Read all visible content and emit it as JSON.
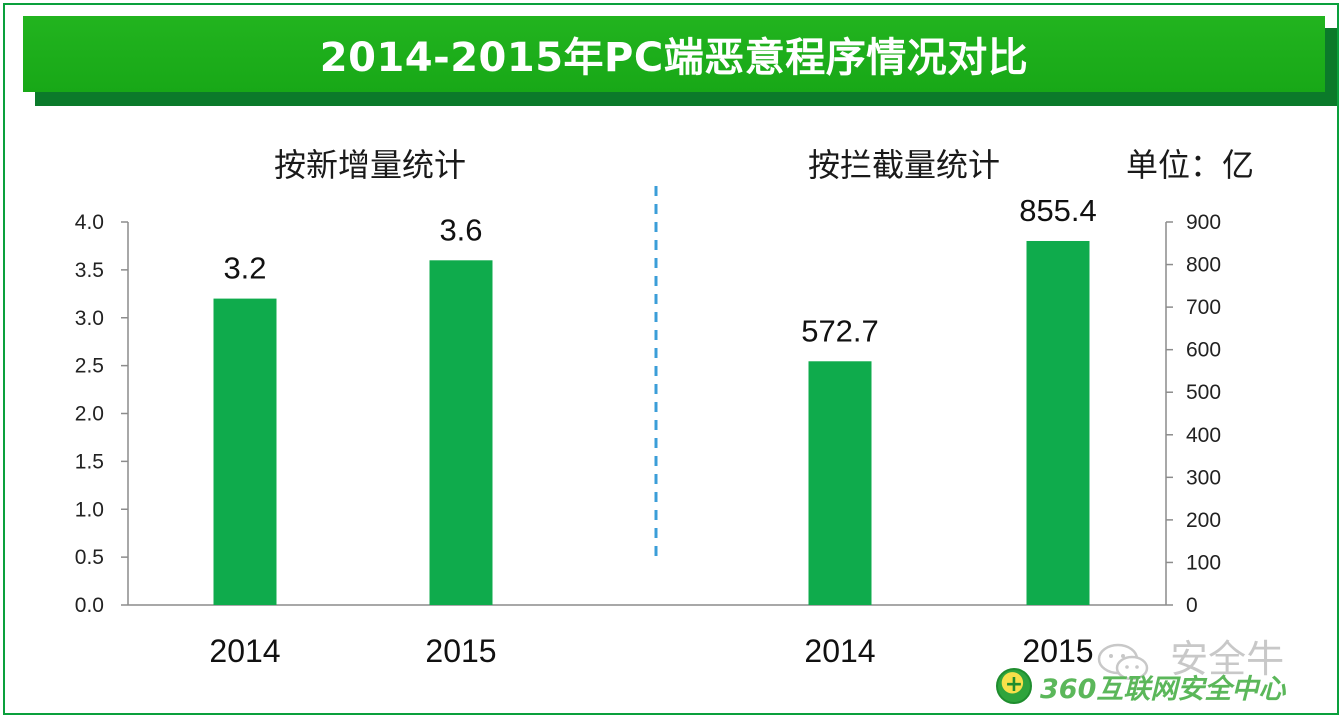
{
  "title": "2014-2015年PC端恶意程序情况对比",
  "unit_label": "单位：亿",
  "watermark": {
    "wechat_icon": "wechat-icon",
    "account": "安全牛",
    "logo_icon": "360-shield-icon",
    "logo_text": "360互联网安全中心"
  },
  "colors": {
    "bar": "#0fab4c",
    "banner": "#1aaa18",
    "divider": "#3b9ed8"
  },
  "chart_data": [
    {
      "type": "bar",
      "title": "按新增量统计",
      "categories": [
        "2014",
        "2015"
      ],
      "values": [
        3.2,
        3.6
      ],
      "data_labels": [
        "3.2",
        "3.6"
      ],
      "ylim": [
        0,
        4.0
      ],
      "yticks": [
        "0.0",
        "0.5",
        "1.0",
        "1.5",
        "2.0",
        "2.5",
        "3.0",
        "3.5",
        "4.0"
      ],
      "y_axis_side": "left",
      "grid": false
    },
    {
      "type": "bar",
      "title": "按拦截量统计",
      "categories": [
        "2014",
        "2015"
      ],
      "values": [
        572.7,
        855.4
      ],
      "data_labels": [
        "572.7",
        "855.4"
      ],
      "ylim": [
        0,
        900
      ],
      "yticks": [
        "0",
        "100",
        "200",
        "300",
        "400",
        "500",
        "600",
        "700",
        "800",
        "900"
      ],
      "y_axis_side": "right",
      "grid": false
    }
  ]
}
